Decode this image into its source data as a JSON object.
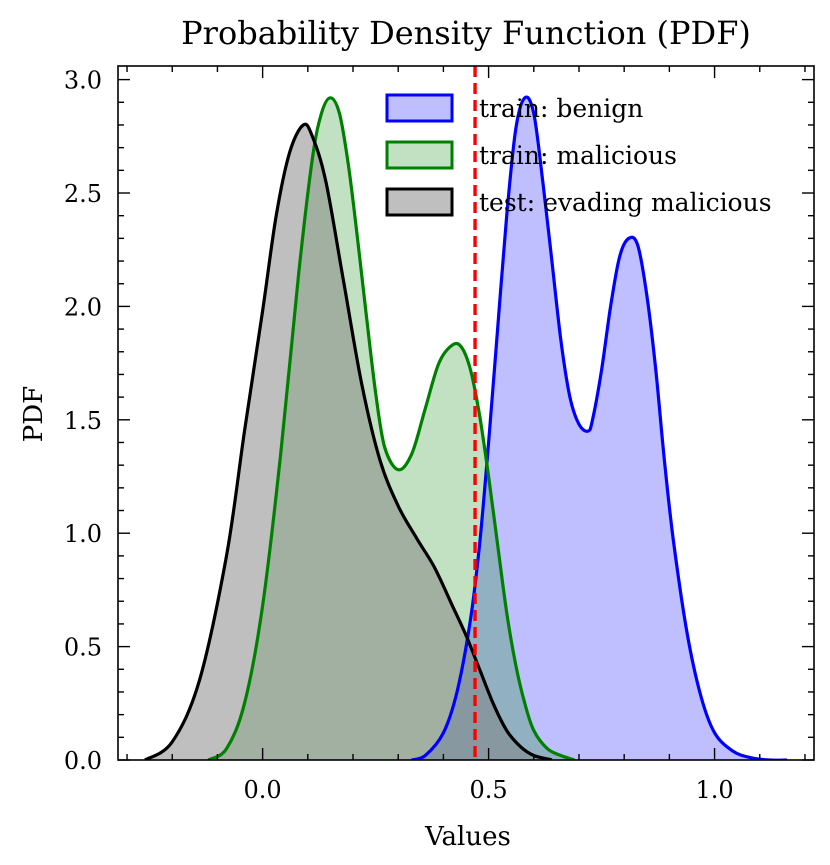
{
  "chart_data": {
    "type": "area",
    "title": "Probability Density Function (PDF)",
    "xlabel": "Values",
    "ylabel": "PDF",
    "xlim": [
      -0.32,
      1.22
    ],
    "ylim": [
      0.0,
      3.06
    ],
    "xticks": [
      0.0,
      0.5,
      1.0
    ],
    "xtick_labels": [
      "0.0",
      "0.5",
      "1.0"
    ],
    "yticks": [
      0.0,
      0.5,
      1.0,
      1.5,
      2.0,
      2.5,
      3.0
    ],
    "ytick_labels": [
      "0.0",
      "0.5",
      "1.0",
      "1.5",
      "2.0",
      "2.5",
      "3.0"
    ],
    "grid": false,
    "legend_position": "top-right",
    "threshold": {
      "x": 0.47,
      "color": "#ff0000",
      "style": "dashed"
    },
    "series": [
      {
        "name": "train: benign",
        "color": "#0000ff",
        "fill": "#bfbfff",
        "fill_opacity": 1.0,
        "x": [
          0.33,
          0.36,
          0.4,
          0.43,
          0.46,
          0.48,
          0.5,
          0.52,
          0.54,
          0.56,
          0.58,
          0.6,
          0.62,
          0.64,
          0.66,
          0.68,
          0.7,
          0.72,
          0.73,
          0.75,
          0.77,
          0.79,
          0.81,
          0.83,
          0.85,
          0.87,
          0.89,
          0.91,
          0.94,
          0.97,
          1.0,
          1.04,
          1.08,
          1.12,
          1.16
        ],
        "y": [
          0.0,
          0.02,
          0.12,
          0.3,
          0.62,
          0.95,
          1.4,
          1.9,
          2.4,
          2.78,
          2.92,
          2.85,
          2.55,
          2.2,
          1.85,
          1.6,
          1.48,
          1.45,
          1.5,
          1.72,
          2.0,
          2.22,
          2.3,
          2.27,
          2.05,
          1.72,
          1.3,
          0.95,
          0.55,
          0.28,
          0.12,
          0.04,
          0.01,
          0.0,
          0.0
        ]
      },
      {
        "name": "train: malicious",
        "color": "#008000",
        "fill": "#008000",
        "fill_opacity": 0.24,
        "x": [
          -0.12,
          -0.08,
          -0.04,
          0.0,
          0.04,
          0.08,
          0.11,
          0.13,
          0.15,
          0.17,
          0.19,
          0.21,
          0.23,
          0.25,
          0.27,
          0.3,
          0.33,
          0.36,
          0.39,
          0.42,
          0.44,
          0.46,
          0.48,
          0.5,
          0.52,
          0.54,
          0.56,
          0.58,
          0.6,
          0.63,
          0.66,
          0.69
        ],
        "y": [
          0.0,
          0.05,
          0.25,
          0.68,
          1.35,
          2.15,
          2.65,
          2.85,
          2.92,
          2.85,
          2.62,
          2.3,
          1.95,
          1.62,
          1.38,
          1.28,
          1.35,
          1.55,
          1.75,
          1.83,
          1.82,
          1.72,
          1.52,
          1.25,
          0.95,
          0.65,
          0.42,
          0.25,
          0.13,
          0.05,
          0.02,
          0.0
        ]
      },
      {
        "name": "test: evading malicious",
        "color": "#000000",
        "fill": "#7f7f7f",
        "fill_opacity": 0.5,
        "x": [
          -0.26,
          -0.2,
          -0.14,
          -0.08,
          -0.04,
          0.0,
          0.03,
          0.06,
          0.09,
          0.11,
          0.14,
          0.18,
          0.22,
          0.26,
          0.3,
          0.34,
          0.38,
          0.42,
          0.45,
          0.48,
          0.51,
          0.54,
          0.57,
          0.6,
          0.64
        ],
        "y": [
          0.0,
          0.08,
          0.35,
          0.9,
          1.45,
          1.98,
          2.4,
          2.68,
          2.8,
          2.75,
          2.55,
          2.1,
          1.65,
          1.32,
          1.12,
          0.98,
          0.85,
          0.68,
          0.55,
          0.4,
          0.25,
          0.13,
          0.06,
          0.02,
          0.0
        ]
      }
    ]
  }
}
